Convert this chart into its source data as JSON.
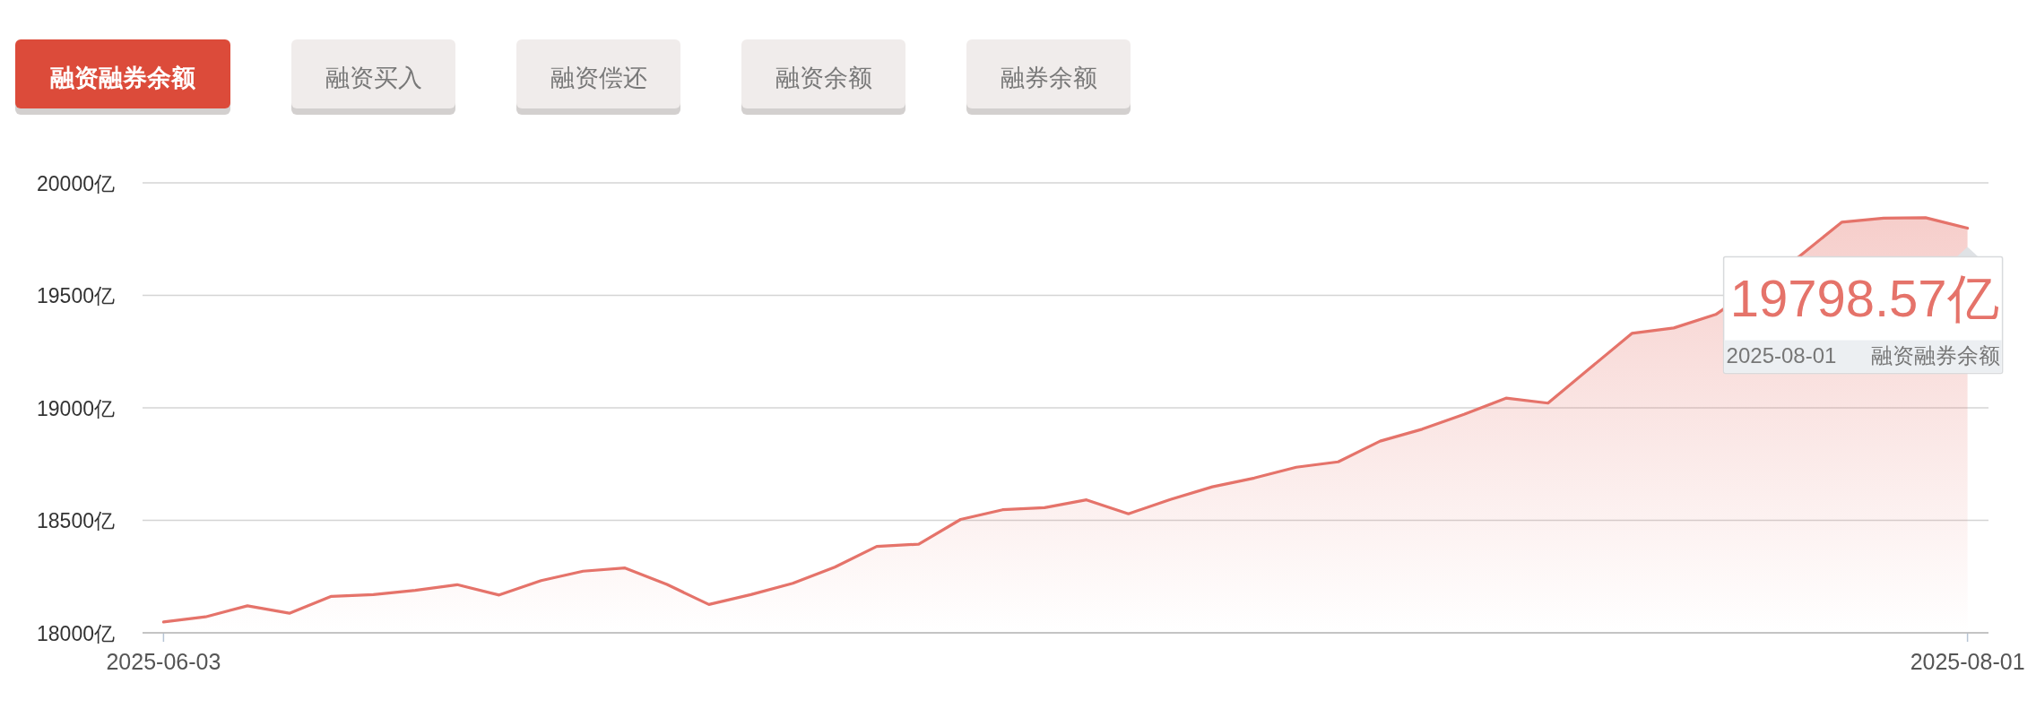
{
  "chart_data": {
    "type": "area",
    "title": "融资融券余额",
    "categories": [
      "2025-06-03",
      null,
      null,
      null,
      null,
      null,
      null,
      null,
      null,
      null,
      null,
      null,
      null,
      null,
      null,
      null,
      null,
      null,
      null,
      null,
      null,
      null,
      null,
      null,
      null,
      null,
      null,
      null,
      null,
      null,
      null,
      null,
      null,
      null,
      null,
      null,
      null,
      null,
      null,
      null,
      null,
      null,
      null,
      "2025-08-01"
    ],
    "series": [
      {
        "name": "融资融券余额",
        "color": "#e5736a",
        "values": [
          18048,
          18071,
          18120,
          18087,
          18162,
          18170,
          18189,
          18214,
          18168,
          18232,
          18274,
          18288,
          18215,
          18126,
          18170,
          18220,
          18292,
          18384,
          18394,
          18504,
          18547,
          18556,
          18591,
          18529,
          18593,
          18649,
          18688,
          18736,
          18760,
          18852,
          18905,
          18971,
          19043,
          19021,
          19176,
          19331,
          19355,
          19415,
          null,
          19674,
          19825,
          19843,
          19845,
          19798.57
        ]
      }
    ],
    "ylim": [
      18000,
      20000
    ],
    "yticks": [
      {
        "value": 18000,
        "label": "18000亿"
      },
      {
        "value": 18500,
        "label": "18500亿"
      },
      {
        "value": 19000,
        "label": "19000亿"
      },
      {
        "value": 19500,
        "label": "19500亿"
      },
      {
        "value": 20000,
        "label": "20000亿"
      }
    ],
    "grid": "y",
    "annotations": [
      "融资买入",
      "融资偿还",
      "融资余额",
      "融券余额",
      {
        "text": "19798.57亿",
        "x": "2025-08-01",
        "y": 19798.57
      }
    ]
  }
}
